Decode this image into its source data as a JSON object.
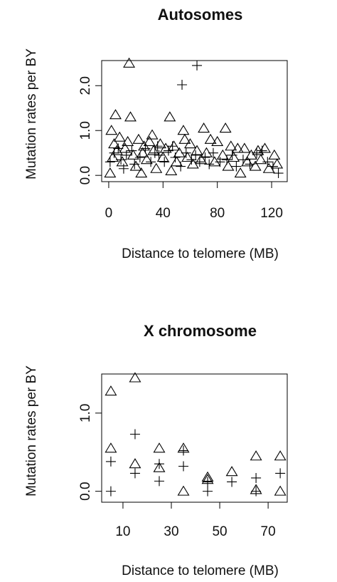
{
  "chart_data": [
    {
      "type": "scatter",
      "title": "Autosomes",
      "x_label": "Distance to telomere (MB)",
      "y_label": "Mutation rates per BY",
      "xlim": [
        -5.2,
        131.5
      ],
      "ylim": [
        -0.14,
        2.56
      ],
      "xticks": [
        0,
        40,
        80,
        120
      ],
      "yticks": [
        {
          "value": 0,
          "label": "0.0"
        },
        {
          "value": 1,
          "label": "1.0"
        },
        {
          "value": 2,
          "label": "2.0"
        }
      ],
      "series": [
        {
          "marker": "triangle",
          "color": "#000000",
          "x": [
            15,
            5,
            16,
            45,
            70,
            86,
            2,
            55,
            8,
            22,
            30,
            38,
            48,
            60,
            75,
            80,
            90,
            95,
            100,
            105,
            110,
            115,
            122,
            124,
            1,
            3,
            6,
            10,
            12,
            18,
            20,
            25,
            28,
            33,
            35,
            40,
            42,
            50,
            52,
            58,
            62,
            65,
            68,
            72,
            78,
            84,
            88,
            92,
            97,
            102,
            108,
            112,
            118,
            24,
            46,
            14,
            32,
            4,
            26,
            56
          ],
          "values": [
            2.5,
            1.35,
            1.3,
            1.3,
            1.05,
            1.05,
            1.0,
            1.0,
            0.85,
            0.8,
            0.75,
            0.7,
            0.65,
            0.7,
            0.8,
            0.75,
            0.65,
            0.6,
            0.6,
            0.45,
            0.55,
            0.6,
            0.45,
            0.25,
            0.05,
            0.4,
            0.55,
            0.3,
            0.6,
            0.45,
            0.2,
            0.5,
            0.35,
            0.55,
            0.15,
            0.4,
            0.6,
            0.3,
            0.5,
            0.4,
            0.25,
            0.55,
            0.35,
            0.5,
            0.3,
            0.45,
            0.2,
            0.4,
            0.05,
            0.3,
            0.2,
            0.35,
            0.15,
            0.05,
            0.1,
            0.75,
            0.9,
            0.7,
            0.65,
            0.8
          ]
        },
        {
          "marker": "plus",
          "color": "#000000",
          "x": [
            54,
            65,
            1,
            4,
            7,
            9,
            13,
            17,
            19,
            23,
            27,
            31,
            34,
            37,
            41,
            44,
            49,
            53,
            57,
            61,
            64,
            67,
            71,
            74,
            77,
            82,
            87,
            91,
            94,
            99,
            104,
            109,
            113,
            117,
            121,
            125,
            36,
            11,
            47
          ],
          "values": [
            2.02,
            2.45,
            0.3,
            0.5,
            0.6,
            0.35,
            0.45,
            0.55,
            0.25,
            0.4,
            0.6,
            0.3,
            0.5,
            0.45,
            0.3,
            0.55,
            0.4,
            0.2,
            0.5,
            0.35,
            0.45,
            0.3,
            0.4,
            0.25,
            0.5,
            0.3,
            0.35,
            0.45,
            0.2,
            0.35,
            0.25,
            0.5,
            0.55,
            0.3,
            0.2,
            0.05,
            0.65,
            0.15,
            0.65
          ]
        }
      ]
    },
    {
      "type": "scatter",
      "title": "X chromosome",
      "x_label": "Distance to telomere (MB)",
      "y_label": "Mutation rates per BY",
      "xlim": [
        1.2,
        77.9
      ],
      "ylim": [
        -0.14,
        1.5
      ],
      "xticks": [
        10,
        30,
        50,
        70
      ],
      "yticks": [
        {
          "value": 0,
          "label": "0.0"
        },
        {
          "value": 1,
          "label": "1.0"
        }
      ],
      "series": [
        {
          "marker": "triangle",
          "color": "#000000",
          "x": [
            5,
            5,
            15,
            15,
            25,
            25,
            35,
            35,
            45,
            45,
            55,
            65,
            65,
            75,
            75
          ],
          "values": [
            1.28,
            0.55,
            1.45,
            0.35,
            0.55,
            0.3,
            0.55,
            0.0,
            0.18,
            0.15,
            0.25,
            0.45,
            0.02,
            0.45,
            0.0
          ]
        },
        {
          "marker": "plus",
          "color": "#000000",
          "x": [
            5,
            5,
            15,
            15,
            25,
            25,
            35,
            35,
            45,
            45,
            55,
            65,
            65,
            75
          ],
          "values": [
            0.38,
            0.0,
            0.73,
            0.23,
            0.35,
            0.13,
            0.52,
            0.32,
            0.12,
            0.0,
            0.12,
            0.17,
            0.0,
            0.23
          ]
        }
      ]
    }
  ]
}
